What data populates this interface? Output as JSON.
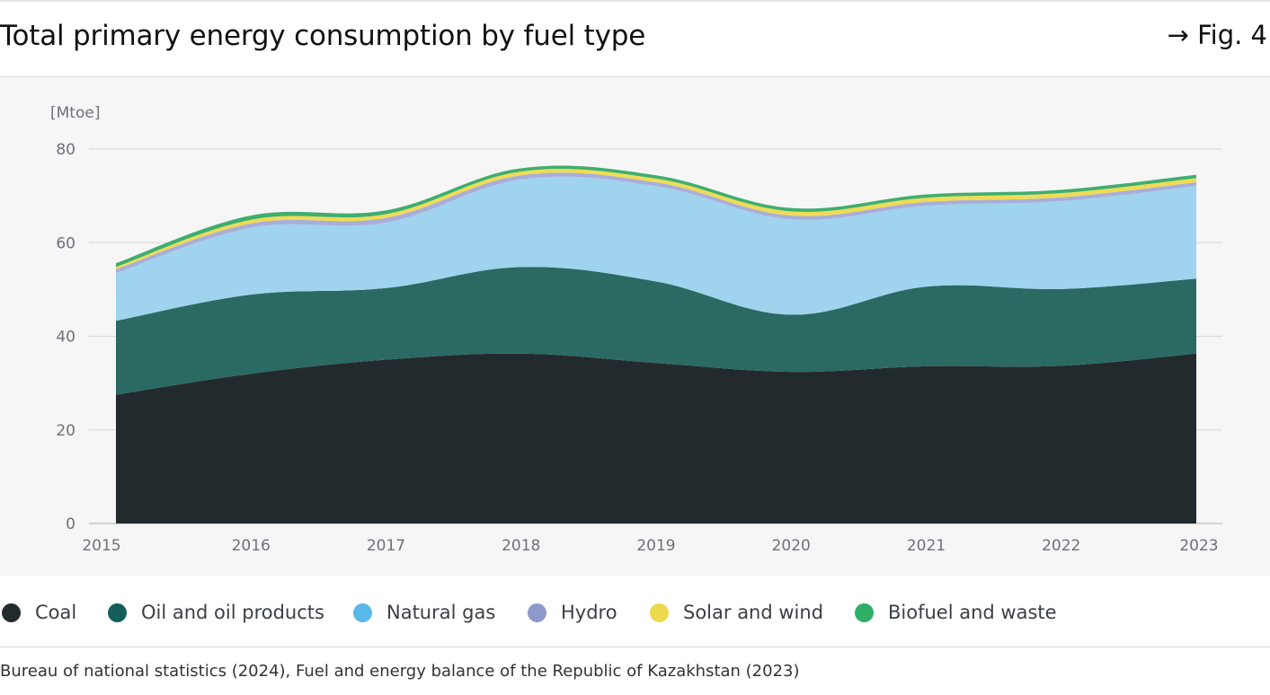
{
  "header": {
    "title": "Total primary energy consumption by fuel type",
    "figure_ref": "→ Fig. 4"
  },
  "source": "Bureau of national statistics (2024), Fuel and energy balance of the Republic of Kazakhstan (2023)",
  "colors": {
    "coal": "#232a2d",
    "oil": "#2a6a62",
    "gas": "#9fd3ee",
    "hydro": "#a9aed9",
    "solar_wind": "#efdc55",
    "biofuel": "#3fae6e",
    "panel_bg": "#f6f6f6",
    "grid": "#dcdcdc"
  },
  "legend": [
    {
      "name": "Coal",
      "color": "#232a2d"
    },
    {
      "name": "Oil and oil products",
      "color": "#135e5a"
    },
    {
      "name": "Natural gas",
      "color": "#5bb8e8"
    },
    {
      "name": "Hydro",
      "color": "#8e98cb"
    },
    {
      "name": "Solar and wind",
      "color": "#ecd94d"
    },
    {
      "name": "Biofuel and waste",
      "color": "#2fae65"
    }
  ],
  "chart_data": {
    "type": "area",
    "stacked": true,
    "ylabel": "[Mtoe]",
    "ylim": [
      0,
      80
    ],
    "yticks": [
      0,
      20,
      40,
      60,
      80
    ],
    "grid": true,
    "x": [
      "2015",
      "2016",
      "2017",
      "2018",
      "2019",
      "2020",
      "2021",
      "2022",
      "2023"
    ],
    "series": [
      {
        "name": "Coal",
        "values": [
          27.5,
          32.0,
          35.0,
          36.3,
          34.3,
          32.4,
          33.6,
          33.7,
          36.3
        ]
      },
      {
        "name": "Oil and oil products",
        "values": [
          15.8,
          16.9,
          15.3,
          18.5,
          17.4,
          12.2,
          17.0,
          16.4,
          16.0
        ]
      },
      {
        "name": "Natural gas",
        "values": [
          10.2,
          14.3,
          14.0,
          18.7,
          20.4,
          20.4,
          17.3,
          18.8,
          19.8
        ]
      },
      {
        "name": "Hydro",
        "values": [
          0.8,
          0.9,
          1.0,
          0.9,
          0.8,
          0.8,
          0.8,
          0.8,
          0.8
        ]
      },
      {
        "name": "Solar and wind",
        "values": [
          0.5,
          0.8,
          0.8,
          0.8,
          0.8,
          0.9,
          0.9,
          0.9,
          0.9
        ]
      },
      {
        "name": "Biofuel and waste",
        "values": [
          0.8,
          0.9,
          0.8,
          0.7,
          0.7,
          0.7,
          0.7,
          0.7,
          0.7
        ]
      }
    ]
  }
}
